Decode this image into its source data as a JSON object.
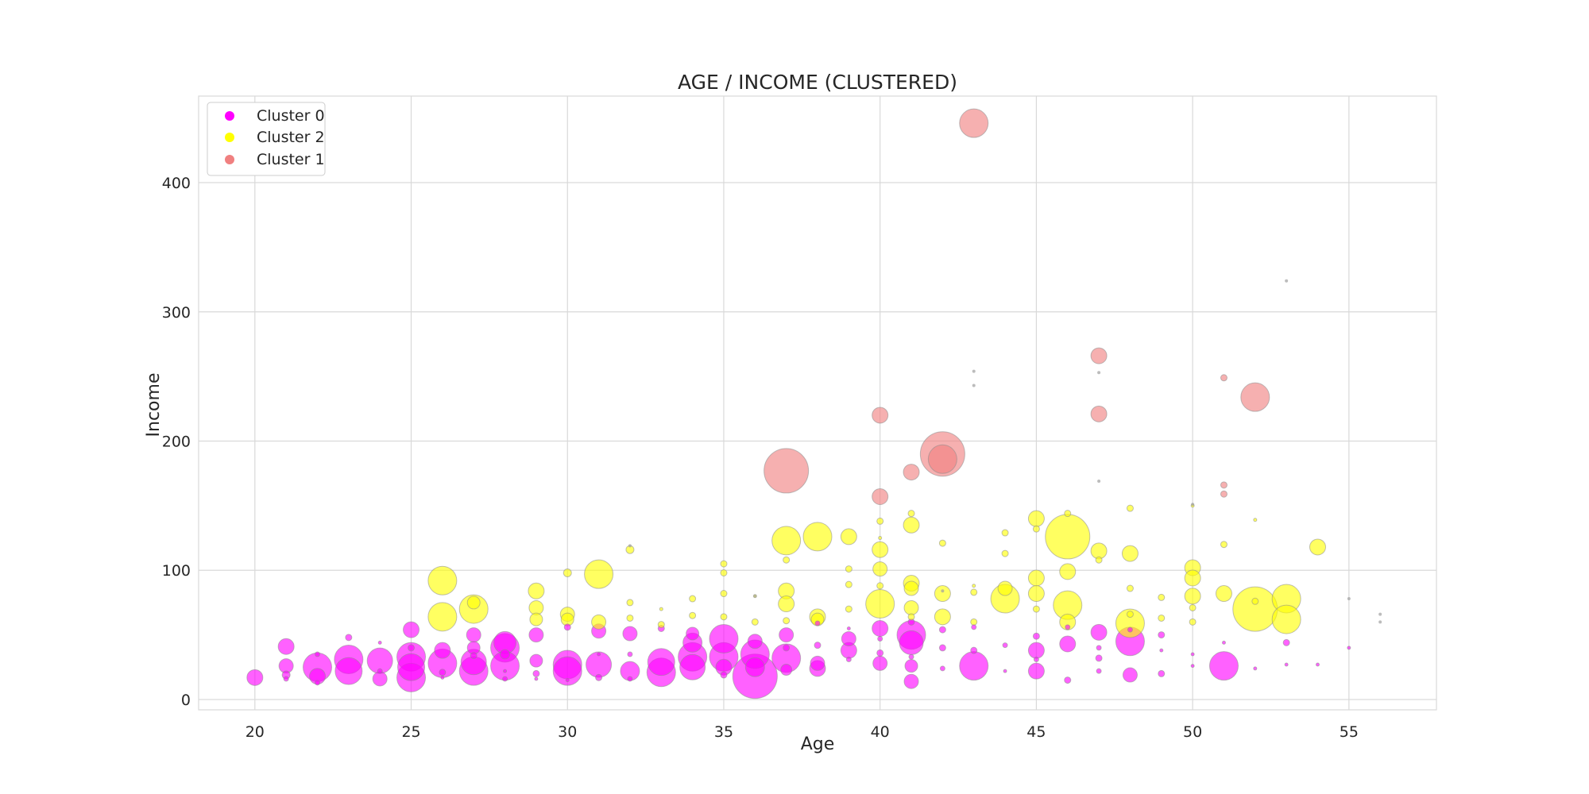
{
  "chart_data": {
    "type": "scatter",
    "title": "AGE / INCOME (CLUSTERED)",
    "xlabel": "Age",
    "ylabel": "Income",
    "xlim": [
      18.2,
      57.8
    ],
    "ylim": [
      -8,
      467
    ],
    "xticks": [
      20,
      25,
      30,
      35,
      40,
      45,
      50,
      55
    ],
    "yticks": [
      0,
      100,
      200,
      300,
      400
    ],
    "grid": true,
    "legend_position": "top-left",
    "colors": {
      "Cluster 0": "#ff00ff",
      "Cluster 2": "#ffff00",
      "Cluster 1": "#f08080"
    },
    "legend": [
      "Cluster 0",
      "Cluster 2",
      "Cluster 1"
    ],
    "points_note": "Each point: [age, income, bubble_size]",
    "series": [
      {
        "name": "Cluster 0",
        "points": [
          [
            20,
            17,
            10
          ],
          [
            21,
            41,
            10
          ],
          [
            21,
            26,
            9
          ],
          [
            21,
            19,
            5
          ],
          [
            21,
            16,
            3
          ],
          [
            22,
            25,
            18
          ],
          [
            22,
            18,
            10
          ],
          [
            22,
            35,
            3
          ],
          [
            22,
            13,
            3
          ],
          [
            23,
            31,
            18
          ],
          [
            23,
            22,
            17
          ],
          [
            23,
            48,
            4
          ],
          [
            24,
            30,
            16
          ],
          [
            24,
            16,
            9
          ],
          [
            24,
            22,
            3
          ],
          [
            24,
            44,
            2
          ],
          [
            25,
            33,
            18
          ],
          [
            25,
            25,
            17
          ],
          [
            25,
            17,
            18
          ],
          [
            25,
            54,
            10
          ],
          [
            25,
            40,
            4
          ],
          [
            26,
            28,
            18
          ],
          [
            26,
            38,
            10
          ],
          [
            26,
            21,
            4
          ],
          [
            26,
            17,
            2
          ],
          [
            27,
            22,
            18
          ],
          [
            27,
            29,
            16
          ],
          [
            27,
            50,
            9
          ],
          [
            27,
            40,
            8
          ],
          [
            27,
            34,
            4
          ],
          [
            28,
            40,
            18
          ],
          [
            28,
            26,
            18
          ],
          [
            28,
            44,
            14
          ],
          [
            28,
            35,
            6
          ],
          [
            28,
            16,
            3
          ],
          [
            28,
            22,
            2
          ],
          [
            29,
            50,
            9
          ],
          [
            29,
            30,
            8
          ],
          [
            29,
            20,
            4
          ],
          [
            29,
            16,
            2
          ],
          [
            30,
            27,
            18
          ],
          [
            30,
            22,
            18
          ],
          [
            30,
            56,
            4
          ],
          [
            30,
            15,
            2
          ],
          [
            31,
            27,
            16
          ],
          [
            31,
            53,
            9
          ],
          [
            31,
            17,
            4
          ],
          [
            31,
            35,
            2
          ],
          [
            32,
            22,
            12
          ],
          [
            32,
            51,
            9
          ],
          [
            32,
            16,
            3
          ],
          [
            32,
            35,
            3
          ],
          [
            33,
            21,
            18
          ],
          [
            33,
            29,
            17
          ],
          [
            33,
            55,
            4
          ],
          [
            34,
            33,
            18
          ],
          [
            34,
            25,
            16
          ],
          [
            34,
            44,
            12
          ],
          [
            34,
            51,
            8
          ],
          [
            35,
            33,
            18
          ],
          [
            35,
            47,
            18
          ],
          [
            35,
            25,
            10
          ],
          [
            35,
            19,
            4
          ],
          [
            36,
            18,
            28
          ],
          [
            36,
            35,
            18
          ],
          [
            36,
            25,
            12
          ],
          [
            36,
            45,
            9
          ],
          [
            37,
            32,
            18
          ],
          [
            37,
            50,
            9
          ],
          [
            37,
            23,
            7
          ],
          [
            37,
            40,
            4
          ],
          [
            38,
            24,
            10
          ],
          [
            38,
            28,
            9
          ],
          [
            38,
            42,
            4
          ],
          [
            38,
            59,
            3
          ],
          [
            39,
            38,
            10
          ],
          [
            39,
            47,
            9
          ],
          [
            39,
            31,
            3
          ],
          [
            39,
            55,
            2
          ],
          [
            40,
            28,
            9
          ],
          [
            40,
            55,
            10
          ],
          [
            40,
            36,
            4
          ],
          [
            40,
            47,
            3
          ],
          [
            41,
            50,
            18
          ],
          [
            41,
            44,
            15
          ],
          [
            41,
            14,
            9
          ],
          [
            41,
            26,
            8
          ],
          [
            41,
            33,
            3
          ],
          [
            41,
            60,
            4
          ],
          [
            42,
            40,
            4
          ],
          [
            42,
            54,
            4
          ],
          [
            42,
            24,
            3
          ],
          [
            43,
            26,
            18
          ],
          [
            43,
            38,
            4
          ],
          [
            43,
            56,
            3
          ],
          [
            44,
            42,
            3
          ],
          [
            44,
            22,
            2
          ],
          [
            45,
            38,
            10
          ],
          [
            45,
            22,
            10
          ],
          [
            45,
            49,
            4
          ],
          [
            45,
            31,
            3
          ],
          [
            46,
            43,
            10
          ],
          [
            46,
            15,
            4
          ],
          [
            46,
            56,
            3
          ],
          [
            47,
            52,
            10
          ],
          [
            47,
            32,
            4
          ],
          [
            47,
            22,
            3
          ],
          [
            47,
            40,
            3
          ],
          [
            48,
            45,
            18
          ],
          [
            48,
            19,
            9
          ],
          [
            48,
            54,
            3
          ],
          [
            49,
            50,
            4
          ],
          [
            49,
            20,
            4
          ],
          [
            49,
            38,
            2
          ],
          [
            50,
            26,
            2
          ],
          [
            50,
            35,
            2
          ],
          [
            51,
            26,
            18
          ],
          [
            51,
            44,
            2
          ],
          [
            52,
            24,
            2
          ],
          [
            53,
            44,
            4
          ],
          [
            53,
            27,
            2
          ],
          [
            54,
            27,
            2
          ],
          [
            55,
            40,
            2
          ]
        ]
      },
      {
        "name": "Cluster 2",
        "points": [
          [
            26,
            92,
            18
          ],
          [
            26,
            64,
            18
          ],
          [
            27,
            70,
            18
          ],
          [
            27,
            75,
            8
          ],
          [
            29,
            84,
            10
          ],
          [
            29,
            71,
            9
          ],
          [
            29,
            62,
            8
          ],
          [
            30,
            98,
            5
          ],
          [
            30,
            66,
            9
          ],
          [
            30,
            62,
            8
          ],
          [
            31,
            97,
            18
          ],
          [
            31,
            60,
            9
          ],
          [
            32,
            116,
            5
          ],
          [
            32,
            75,
            4
          ],
          [
            32,
            63,
            4
          ],
          [
            33,
            58,
            4
          ],
          [
            33,
            70,
            2
          ],
          [
            34,
            78,
            4
          ],
          [
            34,
            65,
            4
          ],
          [
            35,
            105,
            4
          ],
          [
            35,
            98,
            4
          ],
          [
            35,
            82,
            4
          ],
          [
            35,
            64,
            4
          ],
          [
            36,
            60,
            4
          ],
          [
            36,
            80,
            2
          ],
          [
            37,
            123,
            18
          ],
          [
            37,
            84,
            10
          ],
          [
            37,
            74,
            10
          ],
          [
            37,
            108,
            4
          ],
          [
            37,
            61,
            4
          ],
          [
            38,
            126,
            18
          ],
          [
            38,
            64,
            10
          ],
          [
            38,
            62,
            8
          ],
          [
            39,
            126,
            10
          ],
          [
            39,
            101,
            4
          ],
          [
            39,
            89,
            4
          ],
          [
            39,
            70,
            4
          ],
          [
            40,
            74,
            18
          ],
          [
            40,
            116,
            10
          ],
          [
            40,
            101,
            9
          ],
          [
            40,
            88,
            4
          ],
          [
            40,
            138,
            4
          ],
          [
            40,
            125,
            2
          ],
          [
            41,
            135,
            10
          ],
          [
            41,
            90,
            10
          ],
          [
            41,
            86,
            9
          ],
          [
            41,
            71,
            9
          ],
          [
            41,
            144,
            4
          ],
          [
            41,
            64,
            4
          ],
          [
            42,
            82,
            10
          ],
          [
            42,
            64,
            10
          ],
          [
            42,
            121,
            4
          ],
          [
            43,
            83,
            4
          ],
          [
            43,
            60,
            4
          ],
          [
            43,
            88,
            2
          ],
          [
            44,
            78,
            18
          ],
          [
            44,
            86,
            9
          ],
          [
            44,
            129,
            4
          ],
          [
            44,
            113,
            4
          ],
          [
            45,
            140,
            10
          ],
          [
            45,
            94,
            10
          ],
          [
            45,
            82,
            10
          ],
          [
            45,
            70,
            4
          ],
          [
            45,
            132,
            4
          ],
          [
            46,
            126,
            28
          ],
          [
            46,
            73,
            18
          ],
          [
            46,
            99,
            10
          ],
          [
            46,
            60,
            10
          ],
          [
            46,
            144,
            4
          ],
          [
            47,
            115,
            10
          ],
          [
            47,
            108,
            4
          ],
          [
            48,
            59,
            18
          ],
          [
            48,
            113,
            10
          ],
          [
            48,
            148,
            4
          ],
          [
            48,
            86,
            4
          ],
          [
            48,
            66,
            4
          ],
          [
            49,
            79,
            4
          ],
          [
            49,
            63,
            4
          ],
          [
            50,
            102,
            10
          ],
          [
            50,
            94,
            10
          ],
          [
            50,
            80,
            10
          ],
          [
            50,
            71,
            4
          ],
          [
            50,
            60,
            4
          ],
          [
            50,
            150,
            2
          ],
          [
            51,
            82,
            10
          ],
          [
            51,
            120,
            4
          ],
          [
            52,
            70,
            28
          ],
          [
            52,
            76,
            4
          ],
          [
            52,
            139,
            2
          ],
          [
            53,
            78,
            18
          ],
          [
            53,
            62,
            18
          ],
          [
            54,
            118,
            10
          ]
        ]
      },
      {
        "name": "Cluster 1",
        "points": [
          [
            37,
            177,
            28
          ],
          [
            40,
            220,
            10
          ],
          [
            40,
            157,
            10
          ],
          [
            41,
            176,
            10
          ],
          [
            42,
            190,
            28
          ],
          [
            42,
            186,
            18
          ],
          [
            43,
            446,
            18
          ],
          [
            47,
            266,
            10
          ],
          [
            47,
            221,
            10
          ],
          [
            51,
            249,
            4
          ],
          [
            51,
            166,
            4
          ],
          [
            51,
            159,
            4
          ],
          [
            52,
            234,
            18
          ]
        ]
      }
    ],
    "minor_points": [
      [
        43,
        254
      ],
      [
        43,
        243
      ],
      [
        47,
        253
      ],
      [
        47,
        169
      ],
      [
        53,
        324
      ],
      [
        55,
        78
      ],
      [
        56,
        66
      ],
      [
        56,
        60
      ],
      [
        50,
        151
      ],
      [
        36,
        80
      ],
      [
        32,
        119
      ],
      [
        42,
        84
      ]
    ]
  }
}
